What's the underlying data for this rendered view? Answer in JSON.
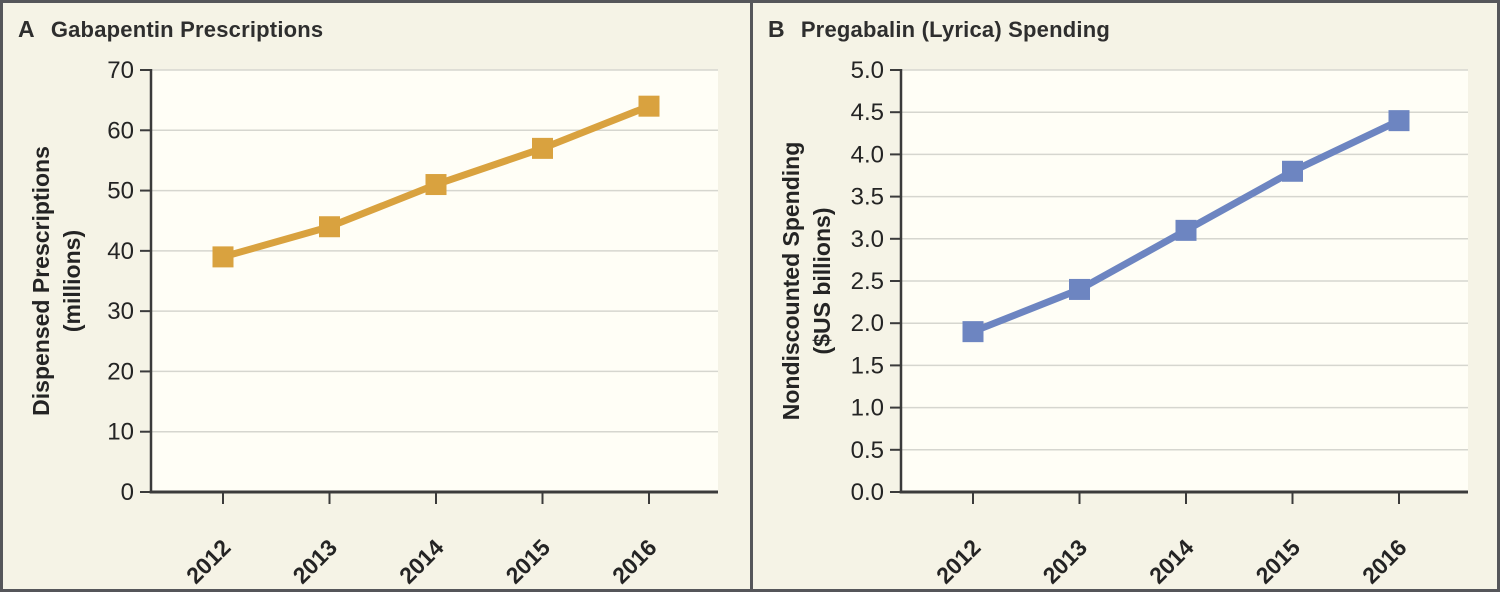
{
  "figure": {
    "colors": {
      "background": "#f5f3e6",
      "plot_background": "#fffef6",
      "frame": "#55565a",
      "grid": "#d6d6cf",
      "axis": "#3b3b3b",
      "text": "#242424",
      "series_a": "#d9a23f",
      "series_b": "#6d85c1"
    }
  },
  "chart_data": [
    {
      "type": "line",
      "panel_label": "A",
      "title": "Gabapentin Prescriptions",
      "categories": [
        "2012",
        "2013",
        "2014",
        "2015",
        "2016"
      ],
      "values": [
        39,
        44,
        51,
        57,
        64
      ],
      "ylabel": "Dispensed Prescriptions (millions)",
      "ylabel_line1": "Dispensed Prescriptions",
      "ylabel_line2": "(millions)",
      "xlabel": "",
      "ylim": [
        0,
        70
      ],
      "yticks": [
        0,
        10,
        20,
        30,
        40,
        50,
        60,
        70
      ],
      "ytick_labels": [
        "0",
        "10",
        "20",
        "30",
        "40",
        "50",
        "60",
        "70"
      ],
      "xtick_rotation": -45,
      "grid": true,
      "legend": "none",
      "marker": "square",
      "line_color": "#d9a23f"
    },
    {
      "type": "line",
      "panel_label": "B",
      "title": "Pregabalin (Lyrica) Spending",
      "categories": [
        "2012",
        "2013",
        "2014",
        "2015",
        "2016"
      ],
      "values": [
        1.9,
        2.4,
        3.1,
        3.8,
        4.4
      ],
      "ylabel": "Nondiscounted Spending ($US billions)",
      "ylabel_line1": "Nondiscounted Spending",
      "ylabel_line2": "($US billions)",
      "xlabel": "",
      "ylim": [
        0.0,
        5.0
      ],
      "yticks": [
        0.0,
        0.5,
        1.0,
        1.5,
        2.0,
        2.5,
        3.0,
        3.5,
        4.0,
        4.5,
        5.0
      ],
      "ytick_labels": [
        "0.0",
        "0.5",
        "1.0",
        "1.5",
        "2.0",
        "2.5",
        "3.0",
        "3.5",
        "4.0",
        "4.5",
        "5.0"
      ],
      "xtick_rotation": -45,
      "grid": true,
      "legend": "none",
      "marker": "square",
      "line_color": "#6d85c1"
    }
  ]
}
